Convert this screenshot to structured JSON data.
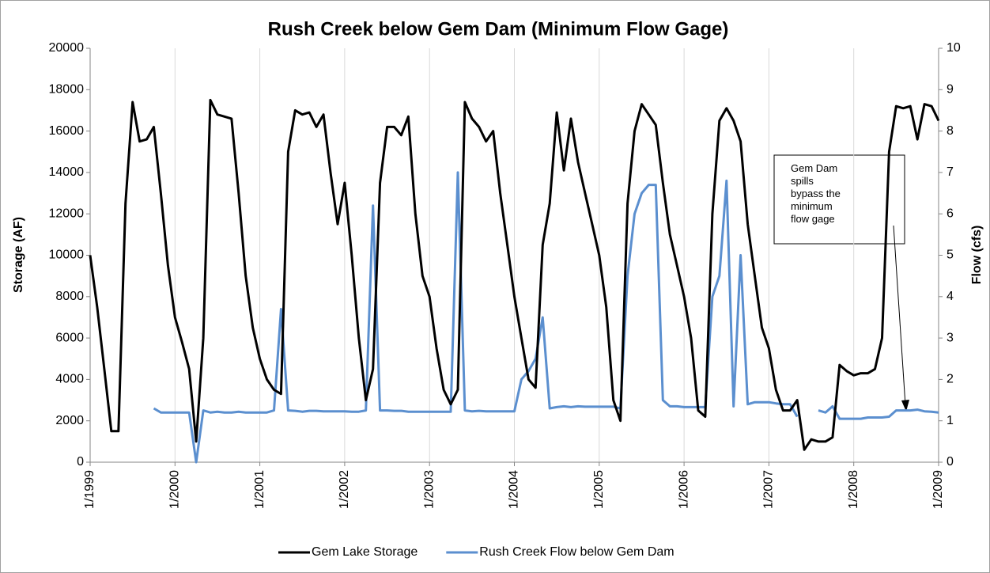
{
  "chart_data": {
    "type": "line",
    "title": "Rush Creek below Gem Dam (Minimum Flow Gage)",
    "y_label": "Storage (AF)",
    "y2_label": "Flow (cfs)",
    "annotation": [
      "Gem Dam",
      "spills",
      "bypass the",
      "minimum",
      "flow gage"
    ],
    "x": [
      "1/1999",
      "2/1999",
      "3/1999",
      "4/1999",
      "5/1999",
      "6/1999",
      "7/1999",
      "8/1999",
      "9/1999",
      "10/1999",
      "11/1999",
      "12/1999",
      "1/2000",
      "2/2000",
      "3/2000",
      "4/2000",
      "5/2000",
      "6/2000",
      "7/2000",
      "8/2000",
      "9/2000",
      "10/2000",
      "11/2000",
      "12/2000",
      "1/2001",
      "2/2001",
      "3/2001",
      "4/2001",
      "5/2001",
      "6/2001",
      "7/2001",
      "8/2001",
      "9/2001",
      "10/2001",
      "11/2001",
      "12/2001",
      "1/2002",
      "2/2002",
      "3/2002",
      "4/2002",
      "5/2002",
      "6/2002",
      "7/2002",
      "8/2002",
      "9/2002",
      "10/2002",
      "11/2002",
      "12/2002",
      "1/2003",
      "2/2003",
      "3/2003",
      "4/2003",
      "5/2003",
      "6/2003",
      "7/2003",
      "8/2003",
      "9/2003",
      "10/2003",
      "11/2003",
      "12/2003",
      "1/2004",
      "2/2004",
      "3/2004",
      "4/2004",
      "5/2004",
      "6/2004",
      "7/2004",
      "8/2004",
      "9/2004",
      "10/2004",
      "11/2004",
      "12/2004",
      "1/2005",
      "2/2005",
      "3/2005",
      "4/2005",
      "5/2005",
      "6/2005",
      "7/2005",
      "8/2005",
      "9/2005",
      "10/2005",
      "11/2005",
      "12/2005",
      "1/2006",
      "2/2006",
      "3/2006",
      "4/2006",
      "5/2006",
      "6/2006",
      "7/2006",
      "8/2006",
      "9/2006",
      "10/2006",
      "11/2006",
      "12/2006",
      "1/2007",
      "2/2007",
      "3/2007",
      "4/2007",
      "5/2007",
      "6/2007",
      "7/2007",
      "8/2007",
      "9/2007",
      "10/2007",
      "11/2007",
      "12/2007",
      "1/2008",
      "2/2008",
      "3/2008",
      "4/2008",
      "5/2008",
      "6/2008",
      "7/2008",
      "8/2008",
      "9/2008",
      "10/2008",
      "11/2008",
      "12/2008",
      "1/2009"
    ],
    "xticks": [
      "1/1999",
      "1/2000",
      "1/2001",
      "1/2002",
      "1/2003",
      "1/2004",
      "1/2005",
      "1/2006",
      "1/2007",
      "1/2008",
      "1/2009"
    ],
    "ylim": [
      0,
      20000
    ],
    "yticks": [
      0,
      2000,
      4000,
      6000,
      8000,
      10000,
      12000,
      14000,
      16000,
      18000,
      20000
    ],
    "y2lim": [
      0,
      10
    ],
    "y2ticks": [
      0,
      1,
      2,
      3,
      4,
      5,
      6,
      7,
      8,
      9,
      10
    ],
    "grid": "x",
    "legend": "bottom",
    "series": [
      {
        "name": "Gem Lake Storage",
        "color": "#000000",
        "axis": "y",
        "values": [
          10000,
          7500,
          4500,
          1500,
          1500,
          12500,
          17400,
          15500,
          15600,
          16200,
          13000,
          9500,
          7000,
          5800,
          4500,
          1000,
          6000,
          17500,
          16800,
          16700,
          16600,
          13000,
          9000,
          6500,
          5000,
          4000,
          3500,
          3300,
          15000,
          17000,
          16800,
          16900,
          16200,
          16800,
          14000,
          11500,
          13500,
          10000,
          6000,
          3000,
          4500,
          13500,
          16200,
          16200,
          15800,
          16700,
          12000,
          9000,
          8000,
          5500,
          3500,
          2800,
          3500,
          17400,
          16600,
          16200,
          15500,
          16000,
          13000,
          10500,
          8000,
          6000,
          4000,
          3600,
          10500,
          12500,
          16900,
          14100,
          16600,
          14500,
          13000,
          11500,
          10000,
          7500,
          3000,
          2000,
          12500,
          16000,
          17300,
          16800,
          16300,
          13500,
          11000,
          9500,
          8000,
          6000,
          2500,
          2200,
          12000,
          16500,
          17100,
          16500,
          15500,
          11500,
          9000,
          6500,
          5500,
          3500,
          2500,
          2500,
          3000,
          600,
          1100,
          1000,
          1000,
          1200,
          4700,
          4400,
          4200,
          4300,
          4300,
          4500,
          6000,
          15000,
          17200,
          17100,
          17200,
          15600,
          17300,
          17200,
          16500
        ]
      },
      {
        "name": "Rush Creek Flow below Gem Dam",
        "color": "#5b8fcf",
        "axis": "y2",
        "values": [
          null,
          null,
          null,
          null,
          null,
          null,
          null,
          null,
          null,
          1.3,
          1.2,
          1.2,
          1.2,
          1.2,
          1.2,
          0,
          1.25,
          1.2,
          1.22,
          1.2,
          1.2,
          1.22,
          1.2,
          1.2,
          1.2,
          1.2,
          1.25,
          3.7,
          1.25,
          1.24,
          1.22,
          1.24,
          1.24,
          1.23,
          1.23,
          1.23,
          1.23,
          1.22,
          1.22,
          1.25,
          6.2,
          1.25,
          1.25,
          1.24,
          1.24,
          1.22,
          1.22,
          1.22,
          1.22,
          1.22,
          1.22,
          1.22,
          7.0,
          1.25,
          1.23,
          1.24,
          1.23,
          1.23,
          1.23,
          1.23,
          1.23,
          2.0,
          2.2,
          2.5,
          3.5,
          1.3,
          1.33,
          1.35,
          1.33,
          1.35,
          1.34,
          1.34,
          1.34,
          1.34,
          1.34,
          1.3,
          4.5,
          6.0,
          6.5,
          6.7,
          6.7,
          1.5,
          1.35,
          1.35,
          1.33,
          1.33,
          1.33,
          1.33,
          4.0,
          4.5,
          6.8,
          1.35,
          5.0,
          1.4,
          1.45,
          1.45,
          1.45,
          1.42,
          1.4,
          1.4,
          1.1,
          null,
          null,
          1.25,
          1.2,
          1.35,
          1.05,
          1.05,
          1.05,
          1.05,
          1.08,
          1.08,
          1.08,
          1.1,
          1.25,
          1.25,
          1.25,
          1.27,
          1.23,
          1.22,
          1.2
        ]
      }
    ]
  }
}
